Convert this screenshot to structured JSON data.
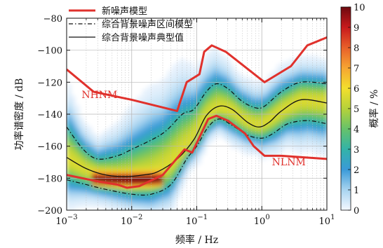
{
  "chart_data": {
    "type": "heatmap",
    "x_scale": "log",
    "xlim": [
      0.001,
      10
    ],
    "ylim": [
      -200,
      -80
    ],
    "xlabel": "频率 / Hz",
    "ylabel": "功率谱密度 / dB",
    "x_ticks": [
      {
        "value": 0.001,
        "base": "10",
        "exp": "−3"
      },
      {
        "value": 0.01,
        "base": "10",
        "exp": "−2"
      },
      {
        "value": 0.1,
        "base": "10",
        "exp": "−1"
      },
      {
        "value": 1,
        "base": "10",
        "exp": "0"
      },
      {
        "value": 10,
        "base": "10",
        "exp": "1"
      }
    ],
    "y_ticks": [
      -80,
      -100,
      -120,
      -140,
      -160,
      -180,
      -200
    ],
    "y_tick_labels": [
      "−80",
      "−100",
      "−120",
      "−140",
      "−160",
      "−180",
      "−200"
    ],
    "colorbar": {
      "label": "概率 / %",
      "min": 0,
      "max": 10,
      "ticks": [
        "0",
        "1",
        "2",
        "3",
        "4",
        "5",
        "6",
        "7",
        "8",
        "9",
        "10"
      ],
      "colors": [
        "#f4f8ff",
        "#a8d4f0",
        "#3a9ad8",
        "#33b3a8",
        "#66c26a",
        "#b6d23a",
        "#f3df2d",
        "#f6a532",
        "#e8602a",
        "#c81a1c",
        "#6e0a10"
      ]
    },
    "legend": {
      "position": "top-left",
      "entries": [
        {
          "label": "新噪声模型",
          "style": "solid",
          "color": "#e0312c",
          "width": 3
        },
        {
          "label": "综合背景噪声区间模型",
          "style": "dashdot",
          "color": "#111111",
          "width": 1.2
        },
        {
          "label": "综合背景噪声典型值",
          "style": "solid",
          "color": "#111111",
          "width": 1.3
        }
      ]
    },
    "annotations": [
      {
        "text": "NHNM",
        "x": 0.0032,
        "y": -130
      },
      {
        "text": "NLNM",
        "x": 2.6,
        "y": -172
      }
    ],
    "series": [
      {
        "name": "NHNM",
        "points": [
          [
            0.001,
            -112
          ],
          [
            0.0026,
            -126
          ],
          [
            0.01,
            -131
          ],
          [
            0.05,
            -138
          ],
          [
            0.07,
            -120
          ],
          [
            0.11,
            -115
          ],
          [
            0.13,
            -101
          ],
          [
            0.17,
            -97
          ],
          [
            0.28,
            -101
          ],
          [
            1.1,
            -120
          ],
          [
            2.8,
            -110
          ],
          [
            5,
            -97
          ],
          [
            10,
            -92
          ]
        ]
      },
      {
        "name": "NLNM",
        "points": [
          [
            0.001,
            -178
          ],
          [
            0.003,
            -182
          ],
          [
            0.006,
            -184
          ],
          [
            0.0085,
            -186
          ],
          [
            0.013,
            -185
          ],
          [
            0.03,
            -178
          ],
          [
            0.065,
            -162
          ],
          [
            0.085,
            -164
          ],
          [
            0.15,
            -143
          ],
          [
            0.2,
            -141
          ],
          [
            0.3,
            -144
          ],
          [
            0.55,
            -152
          ],
          [
            0.75,
            -160
          ],
          [
            1.1,
            -166
          ],
          [
            2,
            -166
          ],
          [
            10,
            -168
          ]
        ]
      },
      {
        "name": "upper_interval",
        "points": [
          [
            0.001,
            -148
          ],
          [
            0.0018,
            -162
          ],
          [
            0.003,
            -168
          ],
          [
            0.006,
            -166
          ],
          [
            0.01,
            -162
          ],
          [
            0.03,
            -152
          ],
          [
            0.06,
            -140
          ],
          [
            0.09,
            -137
          ],
          [
            0.14,
            -126
          ],
          [
            0.2,
            -121
          ],
          [
            0.3,
            -124
          ],
          [
            0.5,
            -132
          ],
          [
            0.8,
            -136
          ],
          [
            1.1,
            -135
          ],
          [
            2,
            -126
          ],
          [
            4,
            -120
          ],
          [
            10,
            -121
          ]
        ]
      },
      {
        "name": "typical",
        "points": [
          [
            0.001,
            -167
          ],
          [
            0.002,
            -174
          ],
          [
            0.004,
            -178
          ],
          [
            0.008,
            -179
          ],
          [
            0.015,
            -178
          ],
          [
            0.025,
            -176
          ],
          [
            0.05,
            -168
          ],
          [
            0.09,
            -156
          ],
          [
            0.14,
            -141
          ],
          [
            0.22,
            -135
          ],
          [
            0.35,
            -137
          ],
          [
            0.6,
            -145
          ],
          [
            0.9,
            -148
          ],
          [
            1.3,
            -145
          ],
          [
            2,
            -138
          ],
          [
            4,
            -131
          ],
          [
            10,
            -133
          ]
        ]
      },
      {
        "name": "lower_interval",
        "points": [
          [
            0.001,
            -181
          ],
          [
            0.002,
            -184
          ],
          [
            0.004,
            -187
          ],
          [
            0.01,
            -190
          ],
          [
            0.02,
            -190
          ],
          [
            0.04,
            -184
          ],
          [
            0.07,
            -168
          ],
          [
            0.1,
            -160
          ],
          [
            0.15,
            -148
          ],
          [
            0.22,
            -143
          ],
          [
            0.35,
            -147
          ],
          [
            0.6,
            -153
          ],
          [
            1.0,
            -155
          ],
          [
            1.5,
            -152
          ],
          [
            2.5,
            -146
          ],
          [
            5,
            -144
          ],
          [
            10,
            -146
          ]
        ]
      }
    ],
    "density": {
      "center": [
        [
          0.001,
          -168
        ],
        [
          0.002,
          -175
        ],
        [
          0.004,
          -179
        ],
        [
          0.01,
          -181
        ],
        [
          0.02,
          -179
        ],
        [
          0.04,
          -171
        ],
        [
          0.08,
          -158
        ],
        [
          0.14,
          -142
        ],
        [
          0.22,
          -136
        ],
        [
          0.35,
          -138
        ],
        [
          0.6,
          -145
        ],
        [
          0.9,
          -147
        ],
        [
          1.3,
          -144
        ],
        [
          2,
          -138
        ],
        [
          4,
          -131
        ],
        [
          10,
          -132
        ]
      ],
      "hot_region": {
        "x": [
          0.0025,
          0.03
        ],
        "y": -181
      }
    }
  }
}
